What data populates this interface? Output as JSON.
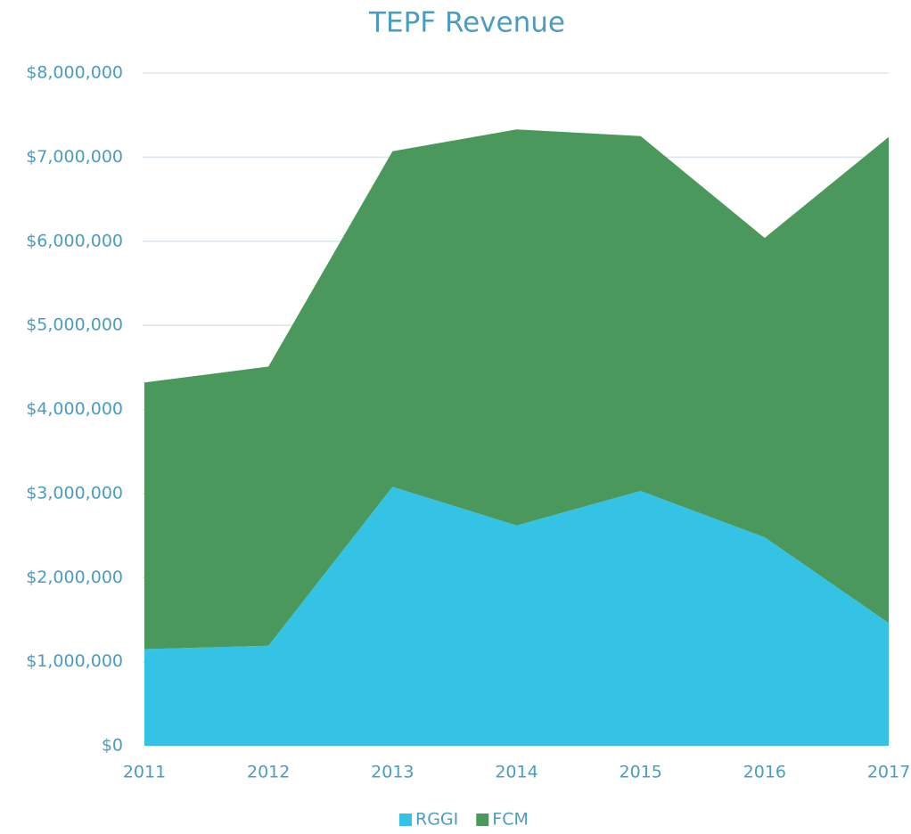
{
  "chart_data": {
    "type": "area",
    "stacked": true,
    "title": "TEPF Revenue",
    "categories": [
      "2011",
      "2012",
      "2013",
      "2014",
      "2015",
      "2016",
      "2017"
    ],
    "series": [
      {
        "name": "RGGI",
        "color": "#35c3e5",
        "values": [
          1150000,
          1190000,
          3080000,
          2620000,
          3030000,
          2480000,
          1460000
        ]
      },
      {
        "name": "FCM",
        "color": "#4a985b",
        "values": [
          3170000,
          3320000,
          3990000,
          4710000,
          4220000,
          3560000,
          5780000
        ]
      }
    ],
    "ylim": [
      0,
      8000000
    ],
    "yticks": [
      {
        "value": 0,
        "label": "$0"
      },
      {
        "value": 1000000,
        "label": "$1,000,000"
      },
      {
        "value": 2000000,
        "label": "$2,000,000"
      },
      {
        "value": 3000000,
        "label": "$3,000,000"
      },
      {
        "value": 4000000,
        "label": "$4,000,000"
      },
      {
        "value": 5000000,
        "label": "$5,000,000"
      },
      {
        "value": 6000000,
        "label": "$6,000,000"
      },
      {
        "value": 7000000,
        "label": "$7,000,000"
      },
      {
        "value": 8000000,
        "label": "$8,000,000"
      }
    ],
    "grid": true,
    "legend": "bottom"
  }
}
